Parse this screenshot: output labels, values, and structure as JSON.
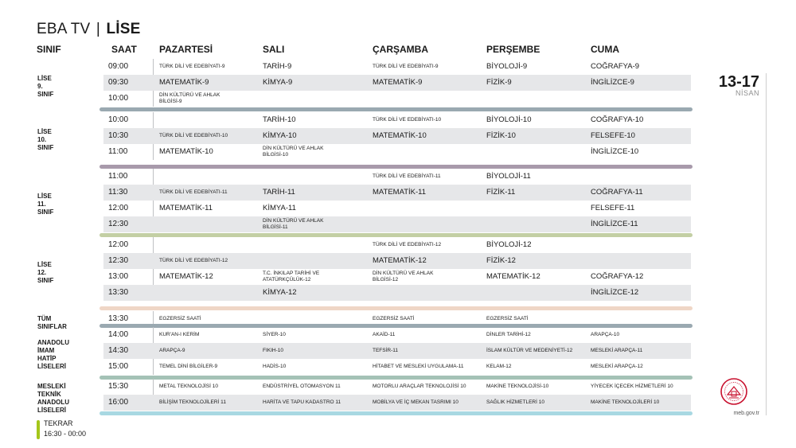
{
  "brand": {
    "left": "EBA TV",
    "sep": "|",
    "right": "LİSE"
  },
  "headers": [
    "SINIF",
    "SAAT",
    "PAZARTESİ",
    "SALI",
    "ÇARŞAMBA",
    "PERŞEMBE",
    "CUMA"
  ],
  "date": {
    "range": "13-17",
    "month": "NİSAN"
  },
  "site": "meb.gov.tr",
  "tekrar": {
    "label": "TEKRAR",
    "time": "16:30 - 00:00"
  },
  "colors": {
    "lise9": "#9aa9b1",
    "lise10": "#a89aab",
    "lise11": "#c3cfa4",
    "lise12": "#efd6c6",
    "tum": "#9aa9b1",
    "imam": "#a4c2b6",
    "meslek": "#a8d8e2",
    "tekrar": "#a4c61a",
    "logo": "#c8102e"
  },
  "groups": [
    {
      "label": [
        "LİSE",
        "9. SINIF"
      ],
      "sep": "lise9",
      "rows": [
        {
          "time": "09:00",
          "cells": [
            {
              "t": "TÜRK DİLİ VE EDEBİYATI-9"
            },
            {
              "t": "TARİH-9",
              "b": 1
            },
            {
              "t": "TÜRK DİLİ VE EDEBİYATI-9"
            },
            {
              "t": "BİYOLOJİ-9",
              "b": 1
            },
            {
              "t": "COĞRAFYA-9",
              "b": 1
            }
          ]
        },
        {
          "time": "09:30",
          "cells": [
            {
              "t": "MATEMATİK-9",
              "b": 1
            },
            {
              "t": "KİMYA-9",
              "b": 1
            },
            {
              "t": "MATEMATİK-9",
              "b": 1
            },
            {
              "t": "FİZİK-9",
              "b": 1
            },
            {
              "t": "İNGİLİZCE-9",
              "b": 1
            }
          ]
        },
        {
          "time": "10:00",
          "cells": [
            {
              "t": "DİN KÜLTÜRÜ VE AHLAK BİLGİSİ-9",
              "w": 1
            },
            {
              "t": ""
            },
            {
              "t": ""
            },
            {
              "t": ""
            },
            {
              "t": ""
            }
          ]
        }
      ]
    },
    {
      "label": [
        "LİSE",
        "10. SINIF"
      ],
      "sep": "lise10",
      "rows": [
        {
          "time": "10:00",
          "cells": [
            {
              "t": ""
            },
            {
              "t": "TARİH-10",
              "b": 1
            },
            {
              "t": "TÜRK DİLİ VE EDEBİYATI-10"
            },
            {
              "t": "BİYOLOJİ-10",
              "b": 1
            },
            {
              "t": "COĞRAFYA-10",
              "b": 1
            }
          ]
        },
        {
          "time": "10:30",
          "cells": [
            {
              "t": "TÜRK DİLİ VE EDEBİYATI-10"
            },
            {
              "t": "KİMYA-10",
              "b": 1
            },
            {
              "t": "MATEMATİK-10",
              "b": 1
            },
            {
              "t": "FİZİK-10",
              "b": 1
            },
            {
              "t": "FELSEFE-10",
              "b": 1
            }
          ]
        },
        {
          "time": "11:00",
          "cells": [
            {
              "t": "MATEMATİK-10",
              "b": 1
            },
            {
              "t": "DİN KÜLTÜRÜ VE AHLAK BİLGİSİ-10",
              "w": 1
            },
            {
              "t": ""
            },
            {
              "t": ""
            },
            {
              "t": "İNGİLİZCE-10",
              "b": 1
            }
          ]
        }
      ]
    },
    {
      "label": [
        "LİSE",
        "11. SINIF"
      ],
      "sep": "lise11",
      "rows": [
        {
          "time": "11:00",
          "cells": [
            {
              "t": ""
            },
            {
              "t": ""
            },
            {
              "t": "TÜRK DİLİ VE EDEBİYATI-11"
            },
            {
              "t": "BİYOLOJİ-11",
              "b": 1
            },
            {
              "t": ""
            }
          ]
        },
        {
          "time": "11:30",
          "cells": [
            {
              "t": "TÜRK DİLİ VE EDEBİYATI-11"
            },
            {
              "t": "TARİH-11",
              "b": 1
            },
            {
              "t": "MATEMATİK-11",
              "b": 1
            },
            {
              "t": "FİZİK-11",
              "b": 1
            },
            {
              "t": "COĞRAFYA-11",
              "b": 1
            }
          ]
        },
        {
          "time": "12:00",
          "cells": [
            {
              "t": "MATEMATİK-11",
              "b": 1
            },
            {
              "t": "KİMYA-11",
              "b": 1
            },
            {
              "t": ""
            },
            {
              "t": ""
            },
            {
              "t": "FELSEFE-11",
              "b": 1
            }
          ]
        },
        {
          "time": "12:30",
          "cells": [
            {
              "t": ""
            },
            {
              "t": "DİN KÜLTÜRÜ VE AHLAK BİLGİSİ-11",
              "w": 1
            },
            {
              "t": ""
            },
            {
              "t": ""
            },
            {
              "t": "İNGİLİZCE-11",
              "b": 1
            }
          ]
        }
      ]
    },
    {
      "label": [
        "LİSE",
        "12. SINIF"
      ],
      "sep": "lise12",
      "rows": [
        {
          "time": "12:00",
          "cells": [
            {
              "t": ""
            },
            {
              "t": ""
            },
            {
              "t": "TÜRK DİLİ VE EDEBİYATI-12"
            },
            {
              "t": "BİYOLOJİ-12",
              "b": 1
            },
            {
              "t": ""
            }
          ]
        },
        {
          "time": "12:30",
          "cells": [
            {
              "t": "TÜRK DİLİ VE EDEBİYATI-12"
            },
            {
              "t": ""
            },
            {
              "t": "MATEMATİK-12",
              "b": 1
            },
            {
              "t": "FİZİK-12",
              "b": 1
            },
            {
              "t": ""
            }
          ]
        },
        {
          "time": "13:00",
          "cells": [
            {
              "t": "MATEMATİK-12",
              "b": 1
            },
            {
              "t": "T.C. İNKILAP TARİHİ VE ATATÜRKÇÜLÜK-12",
              "w": 1
            },
            {
              "t": "DİN KÜLTÜRÜ VE AHLAK BİLGİSİ-12",
              "w": 1
            },
            {
              "t": "MATEMATİK-12",
              "b": 1
            },
            {
              "t": "COĞRAFYA-12",
              "b": 1
            }
          ]
        },
        {
          "time": "13:30",
          "cells": [
            {
              "t": ""
            },
            {
              "t": "KİMYA-12",
              "b": 1
            },
            {
              "t": ""
            },
            {
              "t": ""
            },
            {
              "t": "İNGİLİZCE-12",
              "b": 1
            }
          ]
        }
      ]
    },
    {
      "label": [
        "TÜM SINIFLAR"
      ],
      "sep": "tum",
      "rows": [
        {
          "time": "13:30",
          "cells": [
            {
              "t": "EGZERSİZ SAATİ"
            },
            {
              "t": ""
            },
            {
              "t": "EGZERSİZ SAATİ"
            },
            {
              "t": "EGZERSİZ SAATİ"
            },
            {
              "t": ""
            }
          ]
        }
      ]
    },
    {
      "label": [
        "ANADOLU",
        "İMAM HATİP",
        "LİSELERİ"
      ],
      "sep": "imam",
      "rows": [
        {
          "time": "14:00",
          "cells": [
            {
              "t": "KUR'AN-I KERİM"
            },
            {
              "t": "SİYER-10"
            },
            {
              "t": "AKAİD-11"
            },
            {
              "t": "DİNLER TARİHİ-12"
            },
            {
              "t": "ARAPÇA-10"
            }
          ]
        },
        {
          "time": "14:30",
          "cells": [
            {
              "t": "ARAPÇA-9"
            },
            {
              "t": "FIKIH-10"
            },
            {
              "t": "TEFSİR-11"
            },
            {
              "t": "İSLAM KÜLTÜR VE MEDENİYETİ-12"
            },
            {
              "t": "MESLEKİ ARAPÇA-11"
            }
          ]
        },
        {
          "time": "15:00",
          "cells": [
            {
              "t": "TEMEL DİNİ BİLGİLER-9"
            },
            {
              "t": "HADİS-10"
            },
            {
              "t": "HİTABET VE MESLEKİ UYGULAMA-11"
            },
            {
              "t": "KELAM-12"
            },
            {
              "t": "MESLEKİ ARAPÇA-12"
            }
          ]
        }
      ]
    },
    {
      "label": [
        "MESLEKİ TEKNİK",
        "ANADOLU",
        "LİSELERİ"
      ],
      "sep": "meslek",
      "rows": [
        {
          "time": "15:30",
          "cells": [
            {
              "t": "METAL TEKNOLOJİSİ 10"
            },
            {
              "t": "ENDÜSTRİYEL OTOMASYON 11"
            },
            {
              "t": "MOTORLU ARAÇLAR TEKNOLOJİSİ 10"
            },
            {
              "t": "MAKİNE TEKNOLOJİSİ-10"
            },
            {
              "t": "YİYECEK İÇECEK HİZMETLERİ 10"
            }
          ]
        },
        {
          "time": "16:00",
          "cells": [
            {
              "t": "BİLİŞİM TEKNOLOJİLERİ 11"
            },
            {
              "t": "HARİTA VE TAPU KADASTRO 11"
            },
            {
              "t": "MOBİLYA VE İÇ MEKAN TASRIMI 10"
            },
            {
              "t": "SAĞLIK HİZMETLERİ 10"
            },
            {
              "t": "MAKİNE TEKNOLOJİLERİ 10"
            }
          ]
        }
      ]
    }
  ]
}
